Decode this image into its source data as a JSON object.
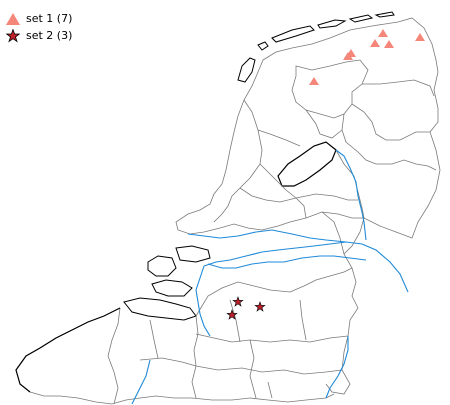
{
  "legend": {
    "items": [
      {
        "label": "set 1 (7)",
        "symbol": "triangle-icon",
        "color": "#f4877a"
      },
      {
        "label": "set 2 (3)",
        "symbol": "star-icon",
        "color": "#c0202a"
      }
    ]
  },
  "colors": {
    "border": "#7a7a7a",
    "coast": "#000000",
    "water": "#1f8ad8",
    "set1": "#f4877a",
    "set2": "#c0202a"
  }
}
